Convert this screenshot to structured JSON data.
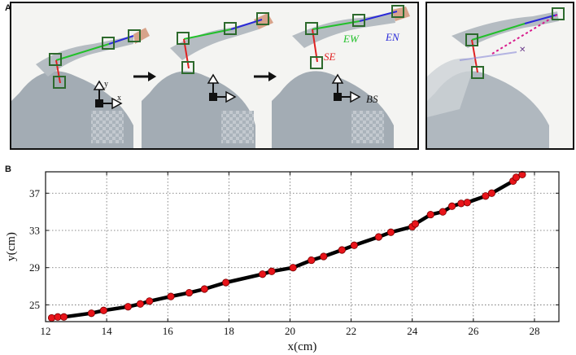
{
  "panels": {
    "a_label": "A",
    "b_label": "B"
  },
  "photo_a": {
    "axis_y": "y",
    "axis_x": "x",
    "vectors": {
      "ew": "EW",
      "en": "EN",
      "se": "SE",
      "bs": "BS"
    }
  },
  "colors": {
    "ew": "#22c02a",
    "en": "#2a2ad8",
    "se": "#e02020",
    "marker_dot": "#e8141a",
    "projection": "#d81a8c"
  },
  "chart_data": {
    "type": "line",
    "title": "",
    "xlabel": "x(cm)",
    "ylabel": "y(cm)",
    "xlim": [
      12,
      28.8
    ],
    "ylim": [
      23.2,
      39.3
    ],
    "xticks": [
      12,
      14,
      16,
      18,
      20,
      22,
      24,
      26,
      28
    ],
    "yticks": [
      25,
      29,
      33,
      37
    ],
    "grid": true,
    "series": [
      {
        "name": "",
        "style": "black line with red circle markers",
        "x": [
          12.2,
          12.4,
          12.6,
          13.5,
          13.9,
          14.7,
          15.1,
          15.4,
          16.1,
          16.7,
          17.2,
          17.9,
          19.1,
          19.4,
          20.1,
          20.7,
          21.1,
          21.7,
          22.1,
          22.9,
          23.3,
          24.0,
          24.1,
          24.6,
          25.0,
          25.3,
          25.6,
          25.8,
          26.4,
          26.6,
          27.3,
          27.4,
          27.6
        ],
        "y": [
          23.6,
          23.7,
          23.7,
          24.1,
          24.4,
          24.8,
          25.1,
          25.4,
          25.9,
          26.3,
          26.7,
          27.4,
          28.3,
          28.6,
          29.0,
          29.8,
          30.2,
          30.9,
          31.4,
          32.3,
          32.8,
          33.4,
          33.7,
          34.7,
          35.0,
          35.6,
          35.9,
          36.0,
          36.7,
          37.0,
          38.3,
          38.7,
          39.0
        ]
      }
    ]
  }
}
